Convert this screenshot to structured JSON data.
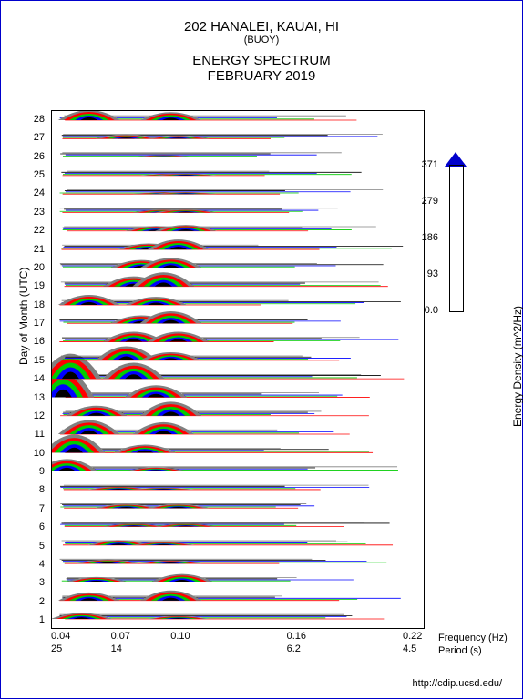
{
  "title": {
    "station": "202 HANALEI, KAUAI, HI",
    "type": "(BUOY)",
    "chart": "ENERGY SPECTRUM",
    "date": "FEBRUARY 2019"
  },
  "yaxis": {
    "label": "Day of Month (UTC)",
    "min": 1,
    "max": 28,
    "ticks": [
      1,
      2,
      3,
      4,
      5,
      6,
      7,
      8,
      9,
      10,
      11,
      12,
      13,
      14,
      15,
      16,
      17,
      18,
      19,
      20,
      21,
      22,
      23,
      24,
      25,
      26,
      27,
      28
    ]
  },
  "xaxis": {
    "freq_label": "Frequency (Hz)",
    "period_label": "Period (s)",
    "freq_ticks": [
      {
        "v": "0.04",
        "pos": 0
      },
      {
        "v": "0.07",
        "pos": 0.17
      },
      {
        "v": "0.10",
        "pos": 0.34
      },
      {
        "v": "0.16",
        "pos": 0.67
      },
      {
        "v": "0.22",
        "pos": 1.0
      }
    ],
    "period_ticks": [
      {
        "v": "25",
        "pos": 0
      },
      {
        "v": "14",
        "pos": 0.17
      },
      {
        "v": "",
        "pos": 0.34
      },
      {
        "v": "6.2",
        "pos": 0.67
      },
      {
        "v": "4.5",
        "pos": 1.0
      }
    ]
  },
  "legend": {
    "label": "Energy Density (m^2/Hz)",
    "ticks": [
      {
        "v": "371",
        "pos": 0
      },
      {
        "v": "279",
        "pos": 0.25
      },
      {
        "v": "186",
        "pos": 0.5
      },
      {
        "v": "93",
        "pos": 0.75
      },
      {
        "v": "0.0",
        "pos": 1.0
      }
    ]
  },
  "colors": {
    "layers": [
      "#808080",
      "#ff0000",
      "#00cc00",
      "#0000ff",
      "#000000"
    ],
    "border": "#0000cc",
    "axis": "#000000"
  },
  "footer": "http://cdip.ucsd.edu/",
  "spectra": [
    {
      "day": 1,
      "peaks": [
        {
          "x": 0.08,
          "h": 6
        },
        {
          "x": 0.34,
          "h": 3
        }
      ]
    },
    {
      "day": 2,
      "peaks": [
        {
          "x": 0.1,
          "h": 8
        },
        {
          "x": 0.32,
          "h": 10
        }
      ]
    },
    {
      "day": 3,
      "peaks": [
        {
          "x": 0.12,
          "h": 5
        },
        {
          "x": 0.35,
          "h": 8
        }
      ]
    },
    {
      "day": 4,
      "peaks": [
        {
          "x": 0.15,
          "h": 4
        },
        {
          "x": 0.32,
          "h": 3
        }
      ]
    },
    {
      "day": 5,
      "peaks": [
        {
          "x": 0.18,
          "h": 5
        },
        {
          "x": 0.3,
          "h": 3
        }
      ]
    },
    {
      "day": 6,
      "peaks": [
        {
          "x": 0.22,
          "h": 3
        },
        {
          "x": 0.36,
          "h": 3
        }
      ]
    },
    {
      "day": 7,
      "peaks": [
        {
          "x": 0.2,
          "h": 4
        },
        {
          "x": 0.34,
          "h": 4
        }
      ]
    },
    {
      "day": 8,
      "peaks": [
        {
          "x": 0.18,
          "h": 3
        },
        {
          "x": 0.3,
          "h": 2
        }
      ]
    },
    {
      "day": 9,
      "peaks": [
        {
          "x": 0.04,
          "h": 12
        },
        {
          "x": 0.28,
          "h": 4
        }
      ]
    },
    {
      "day": 10,
      "peaks": [
        {
          "x": 0.06,
          "h": 18
        },
        {
          "x": 0.25,
          "h": 8
        }
      ]
    },
    {
      "day": 11,
      "peaks": [
        {
          "x": 0.1,
          "h": 14
        },
        {
          "x": 0.3,
          "h": 12
        }
      ]
    },
    {
      "day": 12,
      "peaks": [
        {
          "x": 0.12,
          "h": 10
        },
        {
          "x": 0.32,
          "h": 14
        }
      ]
    },
    {
      "day": 13,
      "peaks": [
        {
          "x": 0.03,
          "h": 28
        },
        {
          "x": 0.28,
          "h": 12
        }
      ]
    },
    {
      "day": 14,
      "peaks": [
        {
          "x": 0.05,
          "h": 25
        },
        {
          "x": 0.22,
          "h": 16
        }
      ]
    },
    {
      "day": 15,
      "peaks": [
        {
          "x": 0.2,
          "h": 14
        },
        {
          "x": 0.32,
          "h": 8
        }
      ]
    },
    {
      "day": 16,
      "peaks": [
        {
          "x": 0.22,
          "h": 10
        },
        {
          "x": 0.34,
          "h": 10
        }
      ]
    },
    {
      "day": 17,
      "peaks": [
        {
          "x": 0.24,
          "h": 8
        },
        {
          "x": 0.32,
          "h": 12
        }
      ]
    },
    {
      "day": 18,
      "peaks": [
        {
          "x": 0.1,
          "h": 10
        },
        {
          "x": 0.28,
          "h": 8
        }
      ]
    },
    {
      "day": 19,
      "peaks": [
        {
          "x": 0.22,
          "h": 10
        },
        {
          "x": 0.3,
          "h": 14
        }
      ]
    },
    {
      "day": 20,
      "peaks": [
        {
          "x": 0.24,
          "h": 8
        },
        {
          "x": 0.32,
          "h": 10
        }
      ]
    },
    {
      "day": 21,
      "peaks": [
        {
          "x": 0.26,
          "h": 6
        },
        {
          "x": 0.34,
          "h": 10
        }
      ]
    },
    {
      "day": 22,
      "peaks": [
        {
          "x": 0.28,
          "h": 5
        },
        {
          "x": 0.36,
          "h": 6
        }
      ]
    },
    {
      "day": 23,
      "peaks": [
        {
          "x": 0.3,
          "h": 3
        },
        {
          "x": 0.36,
          "h": 3
        }
      ]
    },
    {
      "day": 24,
      "peaks": [
        {
          "x": 0.3,
          "h": 2
        },
        {
          "x": 0.36,
          "h": 2
        }
      ]
    },
    {
      "day": 25,
      "peaks": [
        {
          "x": 0.32,
          "h": 2
        },
        {
          "x": 0.36,
          "h": 2
        }
      ]
    },
    {
      "day": 26,
      "peaks": [
        {
          "x": 0.3,
          "h": 2
        }
      ]
    },
    {
      "day": 27,
      "peaks": [
        {
          "x": 0.2,
          "h": 4
        },
        {
          "x": 0.34,
          "h": 3
        }
      ]
    },
    {
      "day": 28,
      "peaks": [
        {
          "x": 0.1,
          "h": 10
        },
        {
          "x": 0.32,
          "h": 8
        }
      ]
    }
  ],
  "plot": {
    "lines_per_day": 5,
    "line_extent_min": 0.02,
    "line_extent_max": 0.98
  }
}
